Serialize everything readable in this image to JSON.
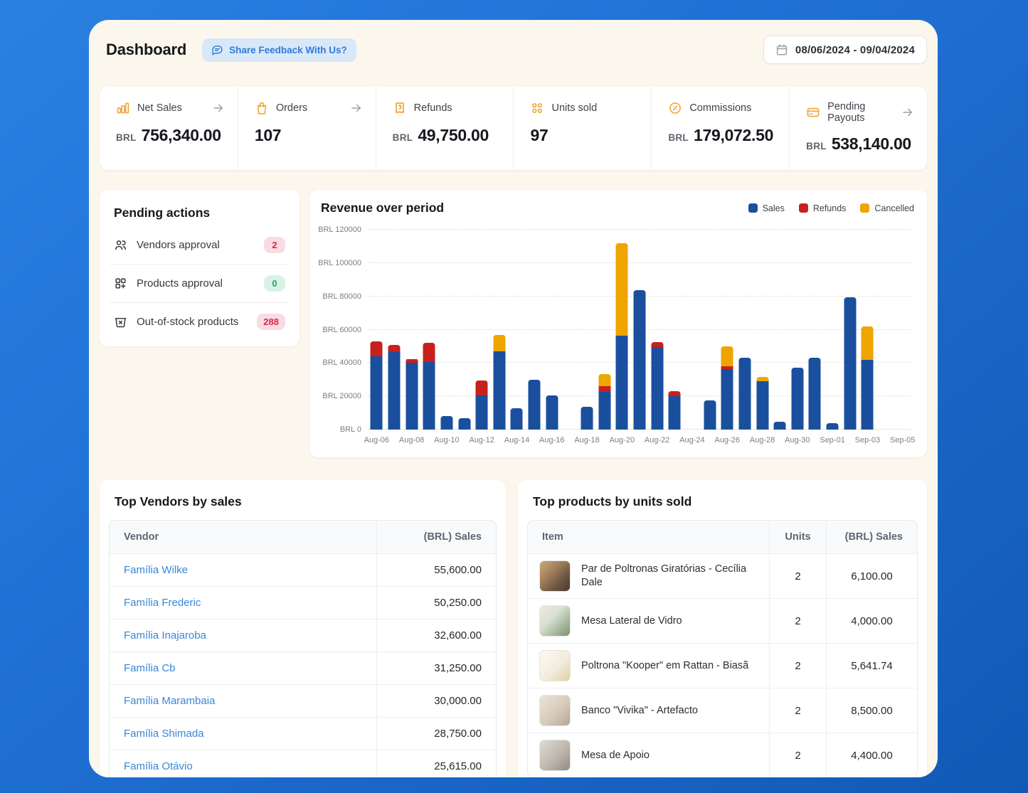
{
  "header": {
    "title": "Dashboard",
    "feedback_label": "Share Feedback With Us?",
    "date_range": "08/06/2024 - 09/04/2024"
  },
  "colors": {
    "accent_amber": "#F0A63A",
    "link_blue": "#3787D8",
    "badge_red_bg": "#FADBE1",
    "badge_red_text": "#D5294D",
    "badge_green_bg": "#D9F2E5",
    "badge_green_text": "#2AA56A",
    "chart_sales": "#1A4F9E",
    "chart_refunds": "#C8201D",
    "chart_cancelled": "#EFA400"
  },
  "stats": [
    {
      "icon": "bar-chart-icon",
      "label": "Net Sales",
      "arrow": true,
      "prefix": "BRL",
      "value": "756,340.00"
    },
    {
      "icon": "shopping-bag-icon",
      "label": "Orders",
      "arrow": true,
      "prefix": "",
      "value": "107"
    },
    {
      "icon": "refund-receipt-icon",
      "label": "Refunds",
      "arrow": false,
      "prefix": "BRL",
      "value": "49,750.00"
    },
    {
      "icon": "units-grid-icon",
      "label": "Units sold",
      "arrow": false,
      "prefix": "",
      "value": "97"
    },
    {
      "icon": "percent-badge-icon",
      "label": "Commissions",
      "arrow": false,
      "prefix": "BRL",
      "value": "179,072.50"
    },
    {
      "icon": "credit-card-icon",
      "label": "Pending Payouts",
      "arrow": true,
      "prefix": "BRL",
      "value": "538,140.00"
    }
  ],
  "pending_actions": {
    "title": "Pending actions",
    "items": [
      {
        "icon": "users-icon",
        "label": "Vendors approval",
        "count": "2",
        "severity": "red"
      },
      {
        "icon": "product-add-icon",
        "label": "Products approval",
        "count": "0",
        "severity": "green"
      },
      {
        "icon": "box-x-icon",
        "label": "Out-of-stock products",
        "count": "288",
        "severity": "red"
      }
    ]
  },
  "chart_data": {
    "type": "bar",
    "stacked": true,
    "title": "Revenue over period",
    "legend_position": "top-right",
    "grid": "dotted-horizontal",
    "ylim": [
      0,
      120000
    ],
    "y_ticks": [
      0,
      20000,
      40000,
      60000,
      80000,
      100000,
      120000
    ],
    "y_tick_labels": [
      "BRL 0",
      "BRL 20000",
      "BRL 40000",
      "BRL 60000",
      "BRL 80000",
      "BRL 100000",
      "BRL 120000"
    ],
    "x_tick_every": 2,
    "categories": [
      "Aug-06",
      "Aug-07",
      "Aug-08",
      "Aug-09",
      "Aug-10",
      "Aug-11",
      "Aug-12",
      "Aug-13",
      "Aug-14",
      "Aug-15",
      "Aug-16",
      "Aug-17",
      "Aug-18",
      "Aug-19",
      "Aug-20",
      "Aug-21",
      "Aug-22",
      "Aug-23",
      "Aug-24",
      "Aug-25",
      "Aug-26",
      "Aug-27",
      "Aug-28",
      "Aug-29",
      "Aug-30",
      "Aug-31",
      "Sep-01",
      "Sep-02",
      "Sep-03",
      "Sep-04",
      "Sep-05"
    ],
    "series": [
      {
        "name": "Sales",
        "color": "#1A4F9E",
        "values": [
          44000,
          46500,
          40000,
          40500,
          8000,
          7000,
          20500,
          47000,
          13000,
          30000,
          20500,
          0,
          13500,
          22500,
          56500,
          83500,
          49500,
          20000,
          0,
          17500,
          36500,
          43000,
          29000,
          4500,
          37000,
          43000,
          4000,
          79500,
          42000,
          0,
          0
        ]
      },
      {
        "name": "Refunds",
        "color": "#C8201D",
        "values": [
          9000,
          4500,
          2500,
          11500,
          0,
          0,
          9000,
          0,
          0,
          0,
          0,
          0,
          0,
          3500,
          0,
          0,
          3000,
          3000,
          0,
          0,
          1500,
          0,
          0,
          0,
          0,
          0,
          0,
          0,
          0,
          0,
          0
        ]
      },
      {
        "name": "Cancelled",
        "color": "#EFA400",
        "values": [
          0,
          0,
          0,
          0,
          0,
          0,
          0,
          10000,
          0,
          0,
          0,
          0,
          0,
          7500,
          55500,
          0,
          0,
          0,
          0,
          0,
          12000,
          0,
          2500,
          0,
          0,
          0,
          0,
          0,
          20000,
          0,
          0
        ]
      }
    ]
  },
  "vendors_table": {
    "title": "Top Vendors by sales",
    "columns": [
      "Vendor",
      "(BRL) Sales"
    ],
    "rows": [
      {
        "name": "Família Wilke",
        "sales": "55,600.00"
      },
      {
        "name": "Família Frederic",
        "sales": "50,250.00"
      },
      {
        "name": "Família Inajaroba",
        "sales": "32,600.00"
      },
      {
        "name": "Família Cb",
        "sales": "31,250.00"
      },
      {
        "name": "Família Marambaia",
        "sales": "30,000.00"
      },
      {
        "name": "Família Shimada",
        "sales": "28,750.00"
      },
      {
        "name": "Família Otávio",
        "sales": "25,615.00"
      }
    ]
  },
  "products_table": {
    "title": "Top products by units sold",
    "columns": [
      "Item",
      "Units",
      "(BRL) Sales"
    ],
    "rows": [
      {
        "item": "Par de Poltronas Giratórias - Cecília Dale",
        "units": "2",
        "sales": "6,100.00",
        "thumb": "t1"
      },
      {
        "item": "Mesa Lateral de Vidro",
        "units": "2",
        "sales": "4,000.00",
        "thumb": "t2"
      },
      {
        "item": "Poltrona \"Kooper\" em Rattan - Biasã",
        "units": "2",
        "sales": "5,641.74",
        "thumb": "t3"
      },
      {
        "item": "Banco \"Vivika\" - Artefacto",
        "units": "2",
        "sales": "8,500.00",
        "thumb": "t4"
      },
      {
        "item": "Mesa de Apoio",
        "units": "2",
        "sales": "4,400.00",
        "thumb": "t5"
      }
    ]
  }
}
